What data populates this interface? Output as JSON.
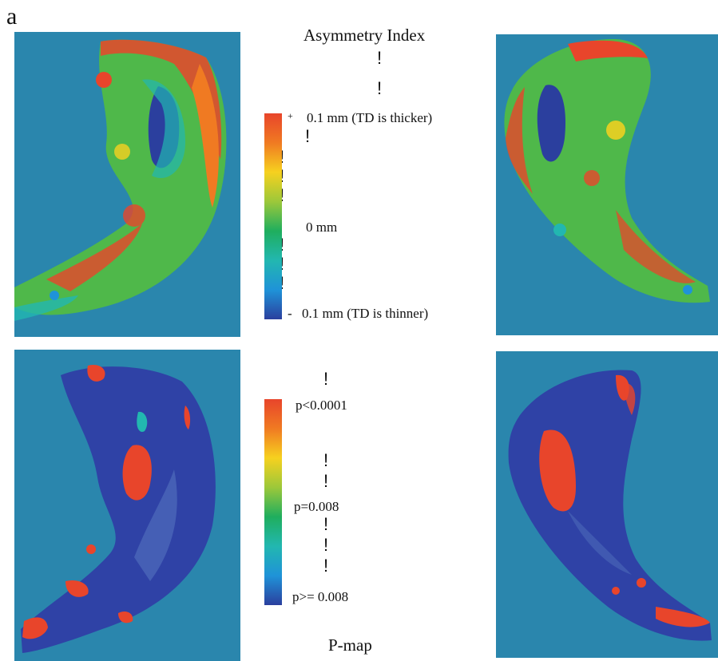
{
  "figure": {
    "panel_label": "a",
    "top_title": "Asymmetry Index",
    "bottom_title": "P-map",
    "background_color": "#2a86ad",
    "asymmetry_colorbar": {
      "plus_sign": "+",
      "minus_sign": "-",
      "label_top": "0.1 mm (TD is thicker)",
      "label_mid": "0 mm",
      "label_bottom": "0.1 mm (TD is thinner)",
      "colors": [
        "#e8452b",
        "#f07a22",
        "#f6d11f",
        "#9cc83a",
        "#1fae5e",
        "#22b7b0",
        "#1f93d8",
        "#2b3f9e"
      ]
    },
    "pmap_colorbar": {
      "label_top": "p<0.0001",
      "label_mid": "p=0.008",
      "label_bottom": "p>= 0.008",
      "colors": [
        "#e8452b",
        "#f07a22",
        "#f6d11f",
        "#9cc83a",
        "#1fae5e",
        "#22b7b0",
        "#1f93d8",
        "#2b3f9e"
      ]
    },
    "exclamation_glyph": "!"
  }
}
